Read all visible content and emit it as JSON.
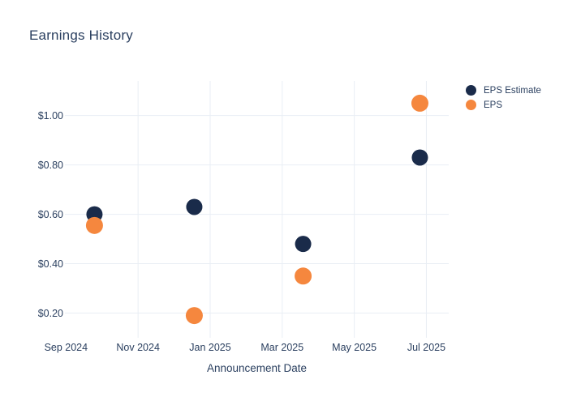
{
  "title": "Earnings History",
  "chart_data": {
    "type": "scatter",
    "title": "Earnings History",
    "xlabel": "Announcement Date",
    "ylabel": "",
    "x_unit": "months_since_sep_2024",
    "xlim": [
      -0.03,
      10.62
    ],
    "ylim": [
      0.1,
      1.14
    ],
    "grid": true,
    "background": "#ffffff",
    "gridline_color": "#e9eef4",
    "text_color": "#2a3f5f",
    "x_ticks": [
      {
        "pos": 0,
        "label": "Sep 2024",
        "gridline": false
      },
      {
        "pos": 2,
        "label": "Nov 2024",
        "gridline": true
      },
      {
        "pos": 4,
        "label": "Jan 2025",
        "gridline": true
      },
      {
        "pos": 6,
        "label": "Mar 2025",
        "gridline": true
      },
      {
        "pos": 8,
        "label": "May 2025",
        "gridline": true
      },
      {
        "pos": 10,
        "label": "Jul 2025",
        "gridline": true
      }
    ],
    "y_ticks": [
      {
        "value": 0.2,
        "label": "$0.20"
      },
      {
        "value": 0.4,
        "label": "$0.40"
      },
      {
        "value": 0.6,
        "label": "$0.60"
      },
      {
        "value": 0.8,
        "label": "$0.80"
      },
      {
        "value": 1.0,
        "label": "$1.00"
      }
    ],
    "series": [
      {
        "name": "EPS Estimate",
        "color": "#1a2b4a",
        "marker_size": 20,
        "points": [
          {
            "x": 0.79,
            "y": 0.6
          },
          {
            "x": 3.56,
            "y": 0.63
          },
          {
            "x": 6.58,
            "y": 0.48
          },
          {
            "x": 9.82,
            "y": 0.83
          }
        ]
      },
      {
        "name": "EPS",
        "color": "#f5873e",
        "marker_size": 21,
        "points": [
          {
            "x": 0.79,
            "y": 0.555
          },
          {
            "x": 3.56,
            "y": 0.19
          },
          {
            "x": 6.58,
            "y": 0.35
          },
          {
            "x": 9.82,
            "y": 1.05
          }
        ]
      }
    ],
    "legend": {
      "position": "top-right"
    }
  }
}
